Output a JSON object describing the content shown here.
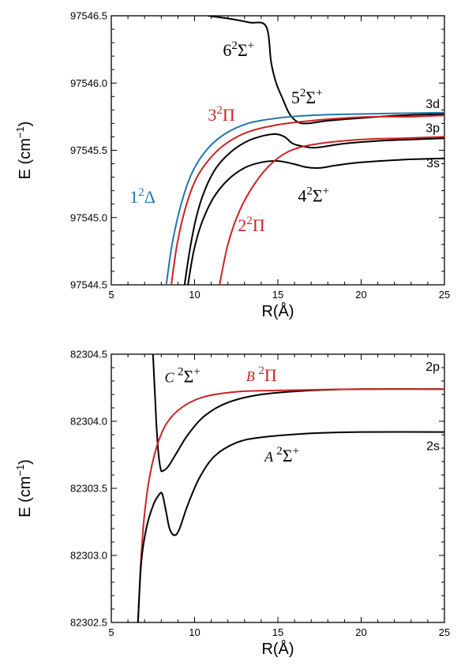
{
  "chart_data": [
    {
      "type": "line",
      "xlabel": "R(Å)",
      "ylabel": "E (cm",
      "ylabel_exp": "−1",
      "ylabel_close": ")",
      "xlim": [
        5,
        25
      ],
      "ylim": [
        97544.5,
        97546.5
      ],
      "xticks": [
        5,
        10,
        15,
        20,
        25
      ],
      "yticks": [
        97544.5,
        97545.0,
        97545.5,
        97546.0,
        97546.5
      ],
      "ytick_labels": [
        "97544.5",
        "97545.0",
        "97545.5",
        "97546.0",
        "97546.5"
      ],
      "asymptote_labels": [
        {
          "text": "3d",
          "y": 97545.78
        },
        {
          "text": "3p",
          "y": 97545.6
        },
        {
          "text": "3s",
          "y": 97545.34
        }
      ],
      "series": [
        {
          "name": "6²Σ⁺",
          "color": "#000000",
          "points": [
            [
              10.8,
              97546.5
            ],
            [
              12.0,
              97546.48
            ],
            [
              13.3,
              97546.45
            ],
            [
              14.3,
              97546.42
            ],
            [
              14.6,
              97546.15
            ],
            [
              14.9,
              97546.0
            ],
            [
              15.3,
              97545.88
            ],
            [
              15.7,
              97545.77
            ],
            [
              16.2,
              97545.71
            ],
            [
              16.8,
              97545.7
            ],
            [
              18,
              97545.72
            ],
            [
              20,
              97545.74
            ],
            [
              22.5,
              97545.76
            ],
            [
              25,
              97545.77
            ]
          ]
        },
        {
          "name": "5²Σ⁺",
          "color": "#000000",
          "points": [
            [
              9.4,
              97544.5
            ],
            [
              9.7,
              97544.75
            ],
            [
              10.1,
              97545.0
            ],
            [
              10.6,
              97545.2
            ],
            [
              11.3,
              97545.37
            ],
            [
              12.2,
              97545.49
            ],
            [
              13.2,
              97545.57
            ],
            [
              14.2,
              97545.61
            ],
            [
              14.9,
              97545.62
            ],
            [
              15.4,
              97545.6
            ],
            [
              15.9,
              97545.55
            ],
            [
              16.5,
              97545.53
            ],
            [
              17.3,
              97545.52
            ],
            [
              19,
              97545.55
            ],
            [
              21,
              97545.57
            ],
            [
              23,
              97545.58
            ],
            [
              25,
              97545.59
            ]
          ]
        },
        {
          "name": "4²Σ⁺",
          "color": "#000000",
          "points": [
            [
              9.6,
              97544.5
            ],
            [
              9.95,
              97544.75
            ],
            [
              10.4,
              97544.95
            ],
            [
              11.1,
              97545.14
            ],
            [
              12.0,
              97545.28
            ],
            [
              13.0,
              97545.37
            ],
            [
              14.0,
              97545.41
            ],
            [
              15.0,
              97545.42
            ],
            [
              15.9,
              97545.4
            ],
            [
              16.5,
              97545.38
            ],
            [
              17.0,
              97545.37
            ],
            [
              17.6,
              97545.37
            ],
            [
              18.6,
              97545.39
            ],
            [
              20,
              97545.41
            ],
            [
              22.5,
              97545.43
            ],
            [
              25,
              97545.44
            ]
          ]
        },
        {
          "name": "3²Π",
          "color": "#cc2222",
          "points": [
            [
              8.6,
              97544.5
            ],
            [
              8.95,
              97544.8
            ],
            [
              9.45,
              97545.07
            ],
            [
              10.1,
              97545.29
            ],
            [
              11.0,
              97545.45
            ],
            [
              12.0,
              97545.56
            ],
            [
              13.3,
              97545.64
            ],
            [
              15,
              97545.69
            ],
            [
              17,
              97545.72
            ],
            [
              19,
              97545.74
            ],
            [
              21,
              97545.75
            ],
            [
              23,
              97545.75
            ],
            [
              25,
              97545.76
            ]
          ]
        },
        {
          "name": "2²Π",
          "color": "#cc2222",
          "points": [
            [
              11.5,
              97544.5
            ],
            [
              12.0,
              97544.8
            ],
            [
              12.7,
              97545.05
            ],
            [
              13.6,
              97545.25
            ],
            [
              14.6,
              97545.4
            ],
            [
              15.8,
              97545.5
            ],
            [
              17.5,
              97545.55
            ],
            [
              20,
              97545.58
            ],
            [
              22.5,
              97545.59
            ],
            [
              25,
              97545.6
            ]
          ]
        },
        {
          "name": "1²Δ",
          "color": "#2277aa",
          "points": [
            [
              8.3,
              97544.5
            ],
            [
              8.65,
              97544.8
            ],
            [
              9.15,
              97545.08
            ],
            [
              9.8,
              97545.32
            ],
            [
              10.7,
              97545.5
            ],
            [
              11.8,
              97545.62
            ],
            [
              13.2,
              97545.7
            ],
            [
              15,
              97545.74
            ],
            [
              17,
              97545.76
            ],
            [
              20,
              97545.77
            ],
            [
              25,
              97545.78
            ]
          ]
        }
      ],
      "curve_labels": [
        {
          "base": "6",
          "sup": "2",
          "sym": "Σ",
          "plus": "+",
          "color": "#000000",
          "x": 11.7,
          "y": 97546.2
        },
        {
          "base": "5",
          "sup": "2",
          "sym": "Σ",
          "plus": "+",
          "color": "#000000",
          "x": 15.8,
          "y": 97545.85
        },
        {
          "base": "3",
          "sup": "2",
          "sym": "Π",
          "plus": "",
          "color": "#cc2222",
          "x": 10.8,
          "y": 97545.72
        },
        {
          "base": "4",
          "sup": "2",
          "sym": "Σ",
          "plus": "+",
          "color": "#000000",
          "x": 16.2,
          "y": 97545.12
        },
        {
          "base": "1",
          "sup": "2",
          "sym": "Δ",
          "plus": "",
          "color": "#2277aa",
          "x": 6.1,
          "y": 97545.11
        },
        {
          "base": "2",
          "sup": "2",
          "sym": "Π",
          "plus": "",
          "color": "#cc2222",
          "x": 12.6,
          "y": 97544.9
        }
      ]
    },
    {
      "type": "line",
      "xlabel": "R(Å)",
      "ylabel": "E (cm",
      "ylabel_exp": "−1",
      "ylabel_close": ")",
      "xlim": [
        5,
        25
      ],
      "ylim": [
        82302.5,
        82304.5
      ],
      "xticks": [
        5,
        10,
        15,
        20,
        25
      ],
      "yticks": [
        82302.5,
        82303.0,
        82303.5,
        82304.0,
        82304.5
      ],
      "ytick_labels": [
        "82302.5",
        "82303.0",
        "82303.5",
        "82304.0",
        "82304.5"
      ],
      "asymptote_labels": [
        {
          "text": "2p",
          "y": 82304.34
        },
        {
          "text": "2s",
          "y": 82303.75
        }
      ],
      "series": [
        {
          "name": "C ²Σ⁺",
          "color": "#000000",
          "points": [
            [
              7.5,
              82304.5
            ],
            [
              7.62,
              82304.2
            ],
            [
              7.72,
              82303.95
            ],
            [
              7.84,
              82303.75
            ],
            [
              7.97,
              82303.64
            ],
            [
              8.1,
              82303.63
            ],
            [
              8.4,
              82303.66
            ],
            [
              8.9,
              82303.76
            ],
            [
              9.6,
              82303.9
            ],
            [
              10.6,
              82304.04
            ],
            [
              12,
              82304.14
            ],
            [
              14,
              82304.2
            ],
            [
              17,
              82304.23
            ],
            [
              20,
              82304.24
            ],
            [
              25,
              82304.24
            ]
          ]
        },
        {
          "name": "B ²Π",
          "color": "#cc2222",
          "points": [
            [
              6.6,
              82302.5
            ],
            [
              6.75,
              82302.9
            ],
            [
              6.95,
              82303.25
            ],
            [
              7.25,
              82303.55
            ],
            [
              7.7,
              82303.8
            ],
            [
              8.3,
              82303.98
            ],
            [
              9.2,
              82304.1
            ],
            [
              10.5,
              82304.18
            ],
            [
              12.5,
              82304.22
            ],
            [
              15,
              82304.23
            ],
            [
              20,
              82304.24
            ],
            [
              25,
              82304.24
            ]
          ]
        },
        {
          "name": "A ²Σ⁺",
          "color": "#000000",
          "points": [
            [
              6.6,
              82302.5
            ],
            [
              6.8,
              82302.95
            ],
            [
              7.1,
              82303.2
            ],
            [
              7.5,
              82303.37
            ],
            [
              7.85,
              82303.45
            ],
            [
              8.05,
              82303.46
            ],
            [
              8.25,
              82303.35
            ],
            [
              8.5,
              82303.2
            ],
            [
              8.8,
              82303.15
            ],
            [
              9.1,
              82303.2
            ],
            [
              9.6,
              82303.38
            ],
            [
              10.3,
              82303.58
            ],
            [
              11.2,
              82303.74
            ],
            [
              12.5,
              82303.84
            ],
            [
              14,
              82303.88
            ],
            [
              17,
              82303.91
            ],
            [
              20,
              82303.92
            ],
            [
              25,
              82303.92
            ]
          ]
        }
      ],
      "curve_labels": [
        {
          "base": "",
          "italic": "C",
          "sup": "2",
          "sym": "Σ",
          "plus": "+",
          "color": "#000000",
          "x": 8.2,
          "y": 82304.29
        },
        {
          "base": "",
          "italic": "B",
          "sup": "2",
          "sym": "Π",
          "plus": "",
          "color": "#cc2222",
          "x": 13.1,
          "y": 82304.3
        },
        {
          "base": "",
          "italic": "A",
          "sup": "2",
          "sym": "Σ",
          "plus": "+",
          "color": "#000000",
          "x": 14.2,
          "y": 82303.7
        }
      ]
    }
  ]
}
